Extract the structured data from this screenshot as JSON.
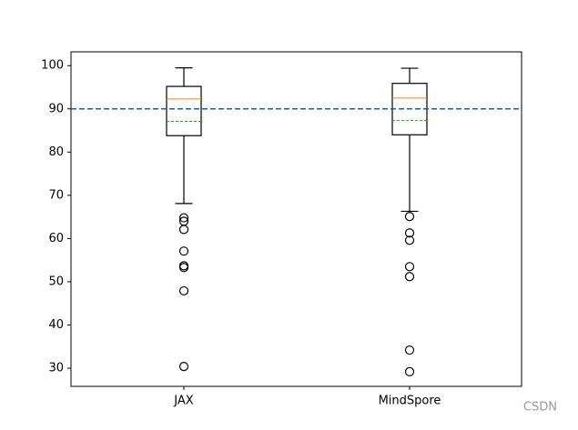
{
  "chart_data": {
    "type": "box",
    "categories": [
      "JAX",
      "MindSpore"
    ],
    "boxes": [
      {
        "whislo": 68.1,
        "q1": 83.8,
        "med": 92.3,
        "mean": 87.1,
        "q3": 95.2,
        "whishi": 99.5,
        "fliers": [
          64.8,
          64.0,
          62.1,
          57.1,
          53.7,
          53.3,
          47.9,
          30.4
        ]
      },
      {
        "whislo": 66.3,
        "q1": 84.0,
        "med": 92.5,
        "mean": 87.3,
        "q3": 95.9,
        "whishi": 99.4,
        "fliers": [
          65.1,
          61.3,
          59.6,
          53.5,
          51.2,
          34.2,
          29.2
        ]
      }
    ],
    "box_color": "#000000",
    "median_color": "#ff7f0e",
    "mean_color": "#2ca02c",
    "hline": 90,
    "hline_color": "#1f5f8b",
    "ylim": [
      25.8,
      103.2
    ],
    "yticks": [
      30,
      40,
      50,
      60,
      70,
      80,
      90,
      100
    ],
    "watermark": "CSDN"
  }
}
